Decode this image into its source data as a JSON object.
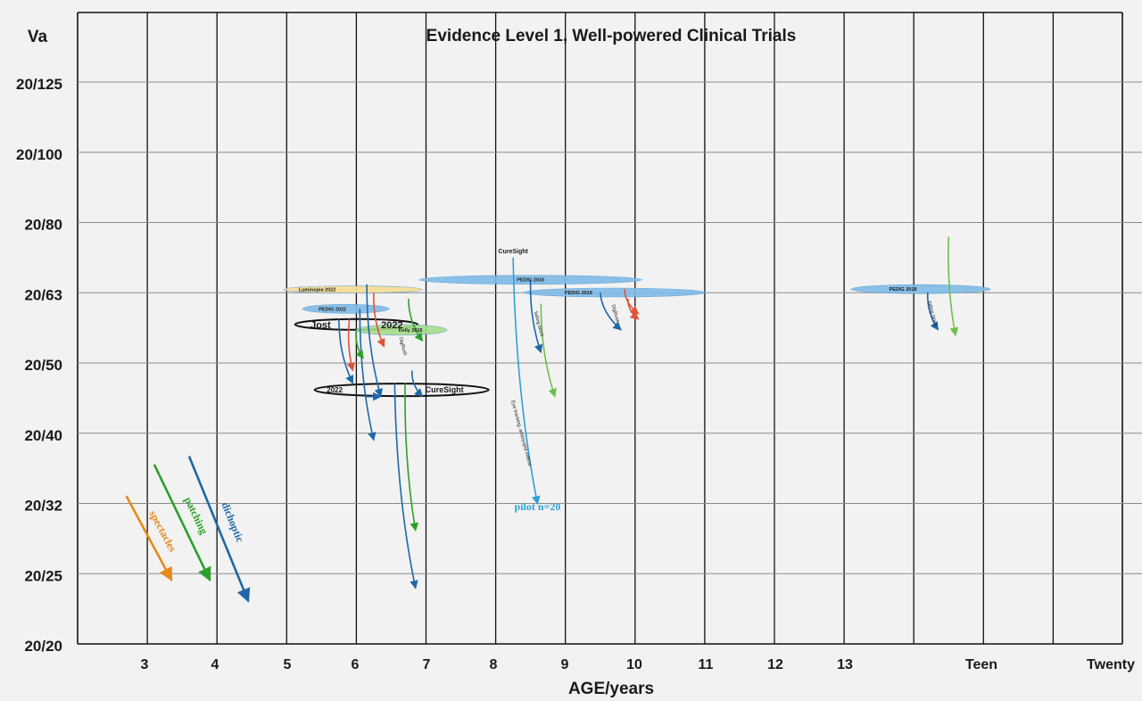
{
  "chart_data": {
    "type": "annotated_timeline_chart",
    "title": "Evidence Level 1, Well-powered Clinical Trials",
    "xlabel": "AGE/years",
    "ylabel": "Va",
    "x_ticks": [
      "3",
      "4",
      "5",
      "6",
      "7",
      "8",
      "9",
      "10",
      "11",
      "12",
      "13",
      "Teen",
      "Twenty"
    ],
    "y_ticks": [
      "20/125",
      "20/100",
      "20/80",
      "20/63",
      "20/50",
      "20/40",
      "20/32",
      "20/25",
      "20/20"
    ],
    "grid": true,
    "colors": {
      "spectacles": "#e8891c",
      "patching": "#2ca02c",
      "dichoptic": "#1f67a8",
      "study_blue": "#7fbbe8",
      "study_yellow": "#f7dd92",
      "study_green": "#a6dc8a",
      "red": "#e0533a",
      "lightgreen": "#6cc04a",
      "skyblue": "#2fa0d8",
      "black": "#111111"
    },
    "legend_arrows": [
      {
        "label": "spectacles",
        "color": "spectacles",
        "from": [
          2.7,
          "20/32+"
        ],
        "to": [
          3.35,
          "20/25-"
        ]
      },
      {
        "label": "patching",
        "color": "patching",
        "from": [
          3.1,
          "20/36"
        ],
        "to": [
          3.9,
          "20/25-"
        ]
      },
      {
        "label": "dichoptic",
        "color": "dichoptic",
        "from": [
          3.6,
          "20/37"
        ],
        "to": [
          4.45,
          "20/23"
        ]
      }
    ],
    "studies": [
      {
        "label": "Luminopia 2022",
        "color": "study_yellow",
        "outline": false,
        "cx": 5.95,
        "cy": "20/63+",
        "rx_years": 1.0,
        "ry": 4
      },
      {
        "label": "PEDIG 2022",
        "color": "study_blue",
        "outline": false,
        "cx": 5.85,
        "cy": "20/60",
        "rx_years": 0.62,
        "ry": 5
      },
      {
        "label": "Jost",
        "label2": "2022",
        "color": "black",
        "outline": true,
        "cx": 6.0,
        "cy": "20/57",
        "rx_years": 0.88,
        "ry": 6
      },
      {
        "label": "Kelly 2016",
        "color": "study_green",
        "outline": false,
        "cx": 6.65,
        "cy": "20/56",
        "rx_years": 0.65,
        "ry": 6
      },
      {
        "label": "2022",
        "label2": "CureSight",
        "color": "black",
        "outline": true,
        "cx": 6.65,
        "cy": "20/46",
        "rx_years": 1.25,
        "ry": 7
      },
      {
        "label": "PEDIG 2016",
        "color": "study_blue",
        "outline": false,
        "cx": 8.5,
        "cy": "20/66",
        "rx_years": 1.6,
        "ry": 5
      },
      {
        "label": "PEDIG 2019",
        "color": "study_blue",
        "outline": false,
        "cx": 9.7,
        "cy": "20/63",
        "rx_years": 1.3,
        "ry": 5
      },
      {
        "label": "PEDIG 2018",
        "color": "study_blue",
        "outline": false,
        "cx": 14.1,
        "cy": "20/64",
        "rx_years": 1.0,
        "ry": 5
      }
    ],
    "annotations": [
      {
        "text": "CureSight",
        "x": 8.25,
        "y": "20/72"
      },
      {
        "text": "pilot n=20",
        "x": 8.6,
        "y": "20/31"
      },
      {
        "text": "Eye tracking, amblyopia videos",
        "x": 8.35,
        "y": "20/40",
        "rotated": true
      },
      {
        "text": "falling block",
        "x": 8.6,
        "y": "20/57",
        "rotated": true
      },
      {
        "text": "falling block",
        "x": 14.25,
        "y": "20/59",
        "rotated": true
      },
      {
        "text": "DigRush",
        "x": 6.65,
        "y": "20/53",
        "rotated": true
      },
      {
        "text": "DigRush",
        "x": 9.7,
        "y": "20/59",
        "rotated": true
      }
    ],
    "trial_arrows": [
      {
        "color": "dichoptic",
        "from": [
          6.15,
          "20/65"
        ],
        "to": [
          6.35,
          "20/45"
        ]
      },
      {
        "color": "red",
        "from": [
          6.25,
          "20/63"
        ],
        "to": [
          6.4,
          "20/53"
        ]
      },
      {
        "color": "dichoptic",
        "from": [
          6.05,
          "20/60"
        ],
        "to": [
          6.25,
          "20/39"
        ]
      },
      {
        "color": "red",
        "from": [
          5.9,
          "20/58"
        ],
        "to": [
          5.95,
          "20/49"
        ]
      },
      {
        "color": "dichoptic",
        "from": [
          5.75,
          "20/58"
        ],
        "to": [
          5.95,
          "20/47"
        ]
      },
      {
        "color": "patching",
        "from": [
          6.0,
          "20/56"
        ],
        "to": [
          6.1,
          "20/51"
        ]
      },
      {
        "color": "patching",
        "from": [
          6.75,
          "20/62"
        ],
        "to": [
          6.95,
          "20/54"
        ]
      },
      {
        "color": "dichoptic",
        "from": [
          6.8,
          "20/49"
        ],
        "to": [
          6.95,
          "20/45"
        ]
      },
      {
        "color": "dichoptic",
        "from": [
          6.55,
          "20/47"
        ],
        "to": [
          6.85,
          "20/24"
        ]
      },
      {
        "color": "patching",
        "from": [
          6.7,
          "20/47"
        ],
        "to": [
          6.85,
          "20/29"
        ]
      },
      {
        "color": "dichoptic",
        "from": [
          6.15,
          "20/45"
        ],
        "to": [
          6.35,
          "20/45"
        ]
      },
      {
        "color": "skyblue",
        "from": [
          8.25,
          "20/71"
        ],
        "to": [
          8.6,
          "20/32"
        ]
      },
      {
        "color": "dichoptic",
        "from": [
          8.5,
          "20/66"
        ],
        "to": [
          8.65,
          "20/52"
        ]
      },
      {
        "color": "lightgreen",
        "from": [
          8.65,
          "20/61"
        ],
        "to": [
          8.85,
          "20/45"
        ]
      },
      {
        "color": "dichoptic",
        "from": [
          9.5,
          "20/63"
        ],
        "to": [
          9.8,
          "20/56"
        ]
      },
      {
        "color": "red",
        "from": [
          9.85,
          "20/64"
        ],
        "to": [
          10.05,
          "20/59"
        ]
      },
      {
        "color": "red",
        "from": [
          9.9,
          "20/62"
        ],
        "to": [
          10.05,
          "20/58"
        ]
      },
      {
        "color": "dichoptic",
        "from": [
          14.2,
          "20/63"
        ],
        "to": [
          14.35,
          "20/56"
        ]
      },
      {
        "color": "lightgreen",
        "from": [
          14.5,
          "20/76"
        ],
        "to": [
          14.6,
          "20/55"
        ]
      }
    ]
  }
}
